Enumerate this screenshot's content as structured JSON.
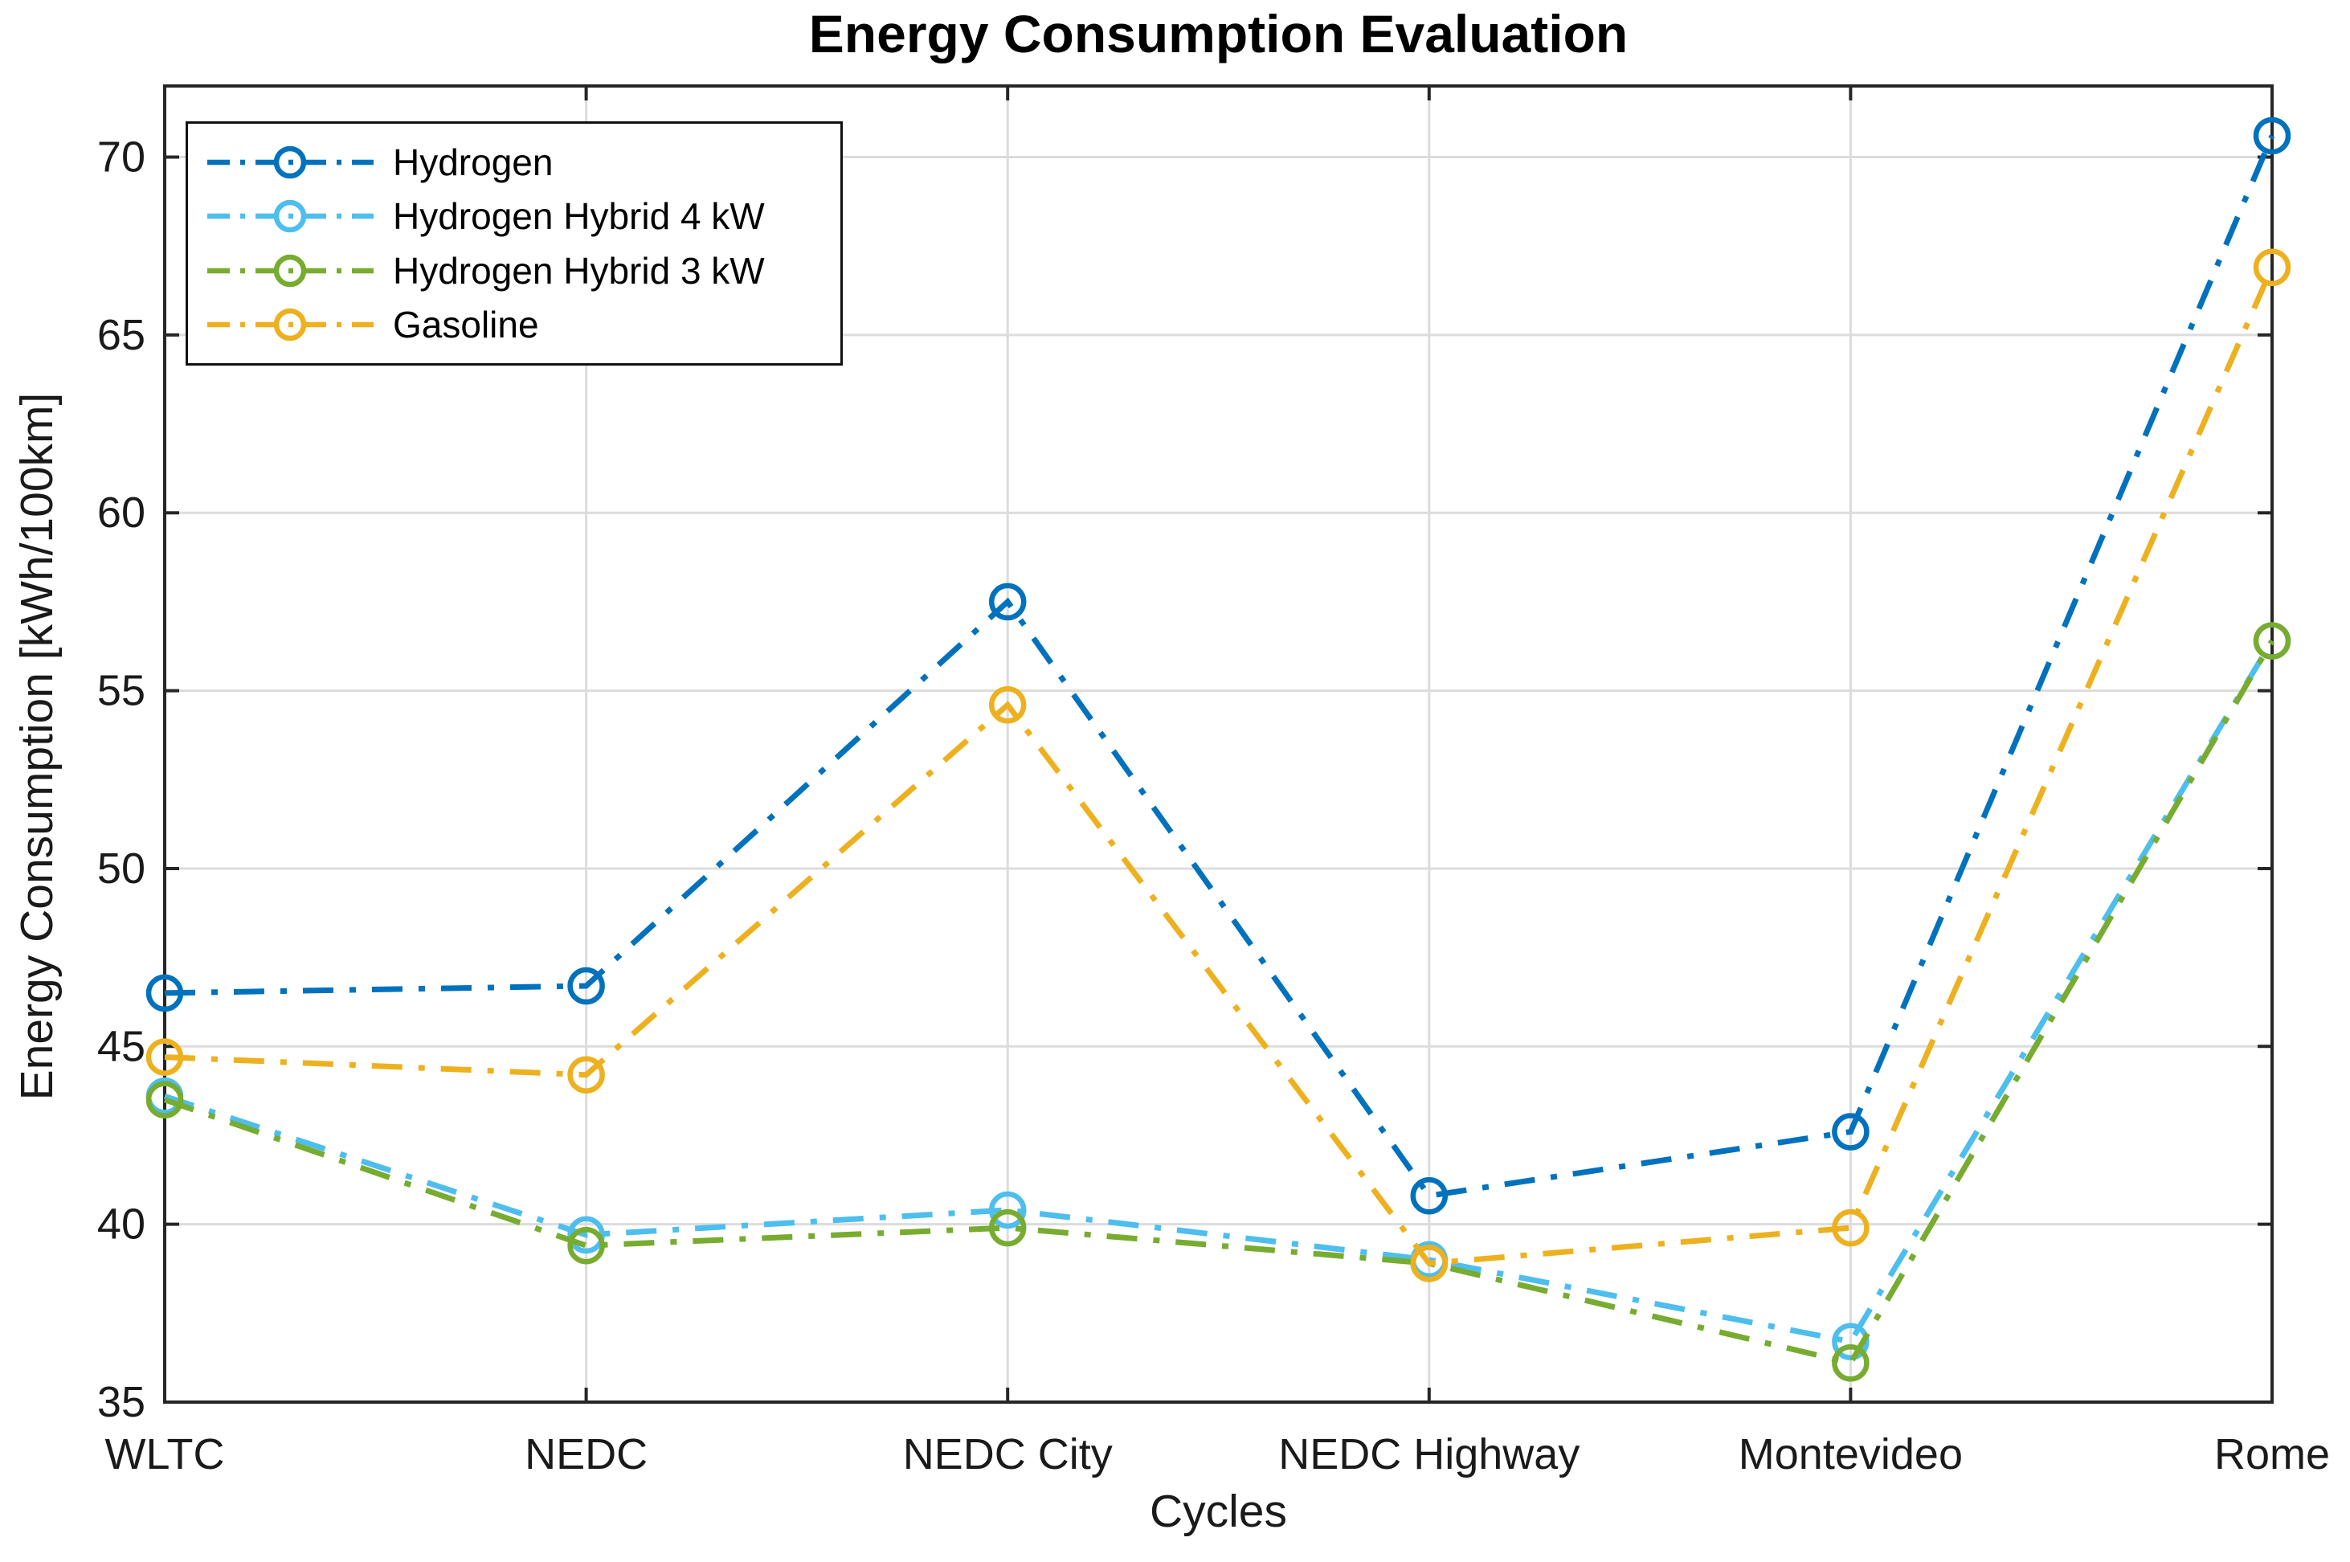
{
  "chart_data": {
    "type": "line",
    "title": "Energy Consumption Evaluation",
    "xlabel": "Cycles",
    "ylabel": "Energy Consumption [kWh/100km]",
    "categories": [
      "WLTC",
      "NEDC",
      "NEDC City",
      "NEDC Highway",
      "Montevideo",
      "Rome"
    ],
    "y_ticks": [
      35,
      40,
      45,
      50,
      55,
      60,
      65,
      70
    ],
    "ylim": [
      35,
      72
    ],
    "grid": true,
    "legend_position": "top-left",
    "line_style": "dash-dot",
    "marker": "open-circle",
    "axis_color": "#262626",
    "grid_color": "#dcdcdc",
    "series": [
      {
        "name": "Hydrogen",
        "color": "#0072BD",
        "values": [
          46.5,
          46.7,
          57.5,
          40.8,
          42.6,
          70.6
        ]
      },
      {
        "name": "Hydrogen Hybrid 4 kW",
        "color": "#4DBEEE",
        "values": [
          43.6,
          39.7,
          40.4,
          39.0,
          36.7,
          56.4
        ]
      },
      {
        "name": "Hydrogen Hybrid 3 kW",
        "color": "#77AC30",
        "values": [
          43.5,
          39.4,
          39.9,
          38.9,
          36.1,
          56.4
        ]
      },
      {
        "name": "Gasoline",
        "color": "#EDB120",
        "values": [
          44.7,
          44.2,
          54.6,
          38.9,
          39.9,
          66.9
        ]
      }
    ]
  }
}
